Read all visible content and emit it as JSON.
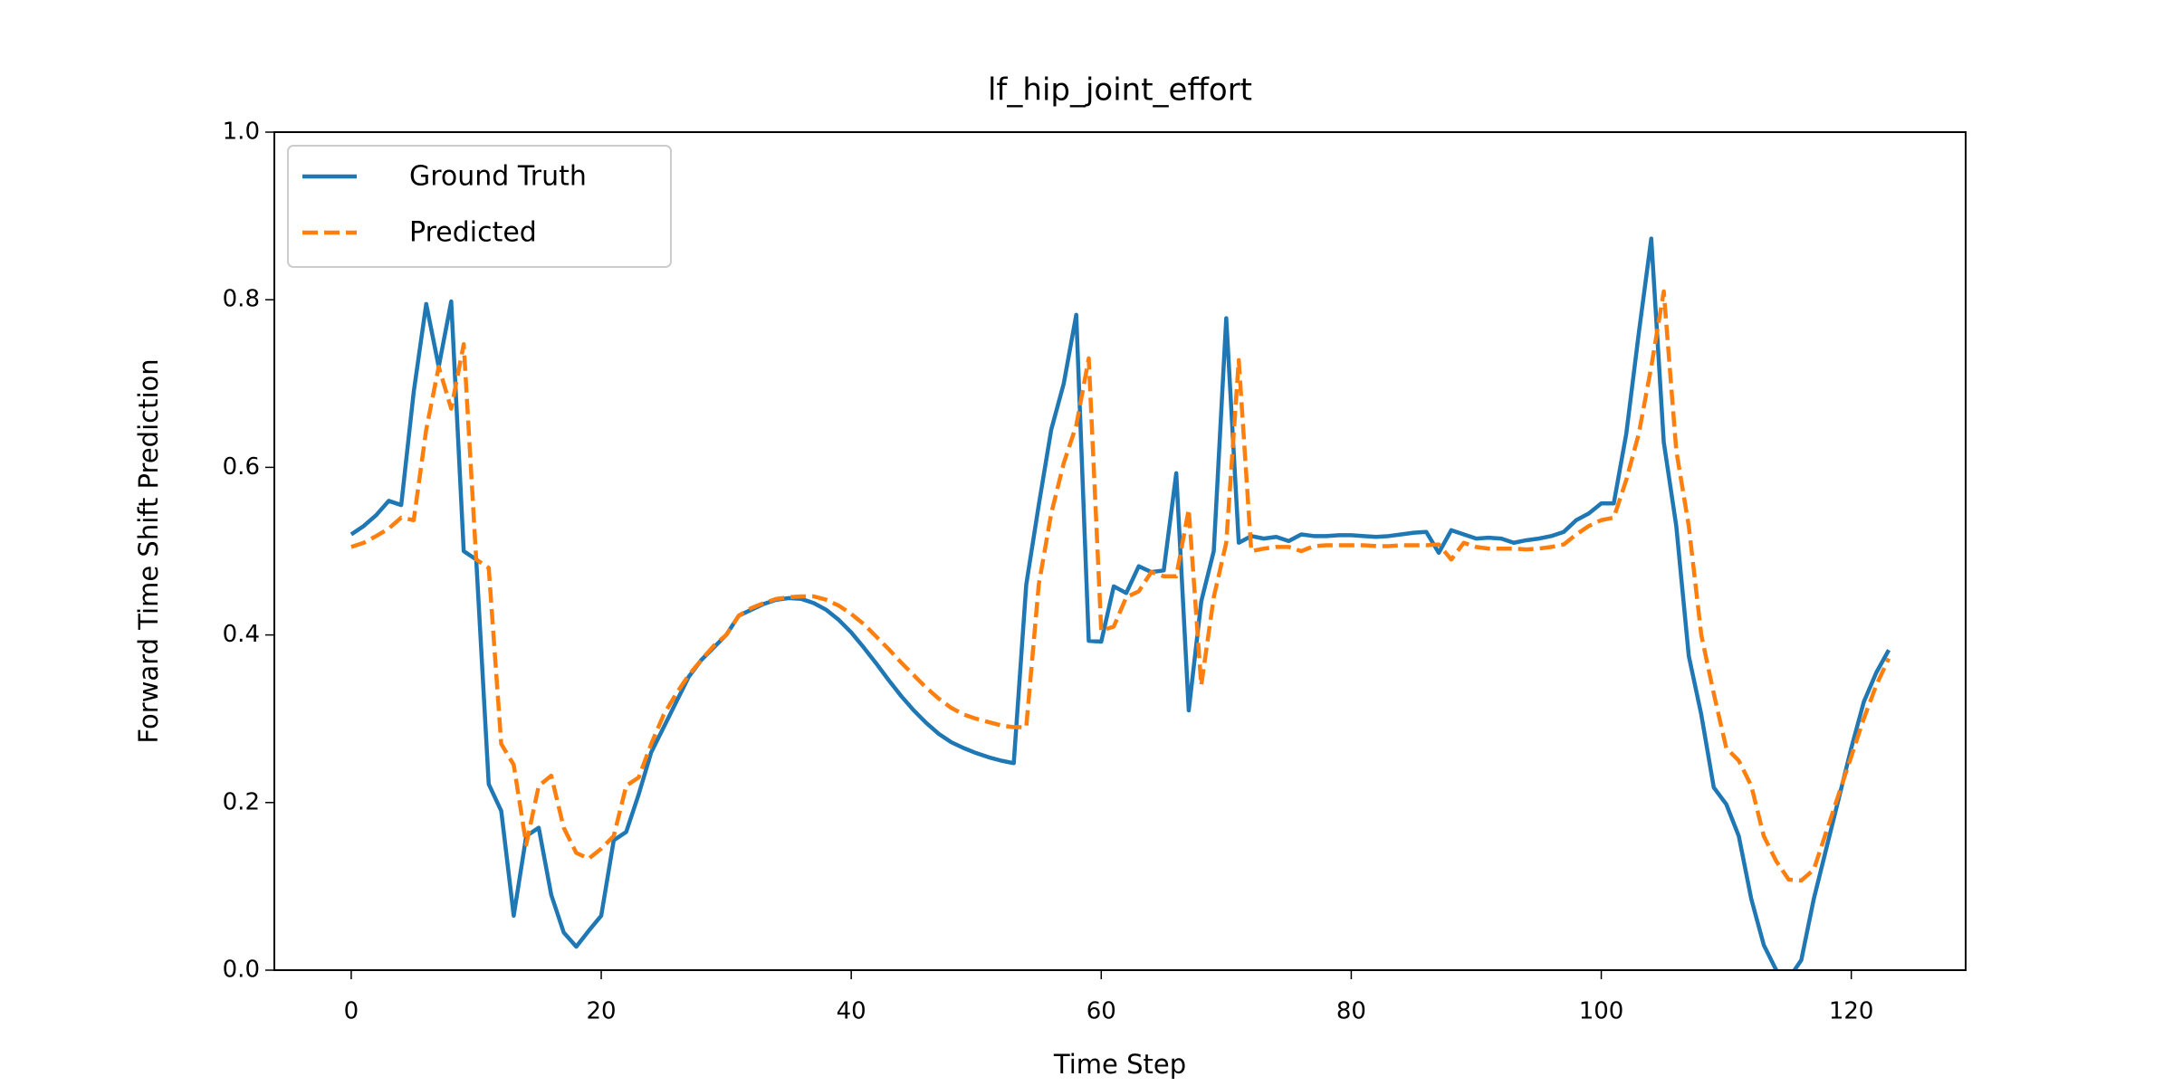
{
  "chart_data": {
    "type": "line",
    "title": "lf_hip_joint_effort",
    "xlabel": "Time Step",
    "ylabel": "Forward Time Shift Prediction",
    "x": [
      0,
      1,
      2,
      3,
      4,
      5,
      6,
      7,
      8,
      9,
      10,
      11,
      12,
      13,
      14,
      15,
      16,
      17,
      18,
      19,
      20,
      21,
      22,
      23,
      24,
      25,
      26,
      27,
      28,
      29,
      30,
      31,
      32,
      33,
      34,
      35,
      36,
      37,
      38,
      39,
      40,
      41,
      42,
      43,
      44,
      45,
      46,
      47,
      48,
      49,
      50,
      51,
      52,
      53,
      54,
      55,
      56,
      57,
      58,
      59,
      60,
      61,
      62,
      63,
      64,
      65,
      66,
      67,
      68,
      69,
      70,
      71,
      72,
      73,
      74,
      75,
      76,
      77,
      78,
      79,
      80,
      81,
      82,
      83,
      84,
      85,
      86,
      87,
      88,
      89,
      90,
      91,
      92,
      93,
      94,
      95,
      96,
      97,
      98,
      99,
      100,
      101,
      102,
      103,
      104,
      105,
      106,
      107,
      108,
      109,
      110,
      111,
      112,
      113,
      114,
      115,
      116,
      117,
      118,
      119,
      120,
      121,
      122,
      123
    ],
    "series": [
      {
        "name": "Ground Truth",
        "color": "#1f77b4",
        "linestyle": "solid",
        "values": [
          0.52,
          0.53,
          0.543,
          0.56,
          0.555,
          0.69,
          0.795,
          0.72,
          0.798,
          0.5,
          0.49,
          0.222,
          0.19,
          0.065,
          0.16,
          0.17,
          0.09,
          0.045,
          0.028,
          0.047,
          0.065,
          0.155,
          0.165,
          0.21,
          0.26,
          0.29,
          0.32,
          0.35,
          0.37,
          0.385,
          0.4,
          0.423,
          0.43,
          0.437,
          0.442,
          0.444,
          0.443,
          0.438,
          0.43,
          0.418,
          0.403,
          0.385,
          0.366,
          0.346,
          0.327,
          0.31,
          0.295,
          0.282,
          0.272,
          0.265,
          0.259,
          0.254,
          0.25,
          0.247,
          0.46,
          0.555,
          0.645,
          0.7,
          0.782,
          0.393,
          0.392,
          0.458,
          0.45,
          0.482,
          0.475,
          0.477,
          0.593,
          0.31,
          0.44,
          0.5,
          0.778,
          0.51,
          0.518,
          0.515,
          0.517,
          0.512,
          0.52,
          0.518,
          0.518,
          0.519,
          0.519,
          0.518,
          0.517,
          0.518,
          0.52,
          0.522,
          0.523,
          0.498,
          0.525,
          0.52,
          0.515,
          0.516,
          0.515,
          0.51,
          0.513,
          0.515,
          0.518,
          0.523,
          0.537,
          0.545,
          0.557,
          0.557,
          0.64,
          0.76,
          0.873,
          0.63,
          0.53,
          0.375,
          0.305,
          0.218,
          0.198,
          0.16,
          0.085,
          0.03,
          0.0,
          -0.01,
          0.012,
          0.085,
          0.145,
          0.205,
          0.265,
          0.32,
          0.355,
          0.382
        ]
      },
      {
        "name": "Predicted",
        "color": "#ff7f0e",
        "linestyle": "dashed",
        "values": [
          0.505,
          0.51,
          0.518,
          0.527,
          0.54,
          0.537,
          0.645,
          0.72,
          0.67,
          0.747,
          0.49,
          0.48,
          0.27,
          0.245,
          0.15,
          0.22,
          0.232,
          0.17,
          0.14,
          0.133,
          0.145,
          0.16,
          0.22,
          0.23,
          0.27,
          0.305,
          0.33,
          0.352,
          0.37,
          0.387,
          0.4,
          0.423,
          0.432,
          0.438,
          0.443,
          0.445,
          0.446,
          0.446,
          0.442,
          0.435,
          0.425,
          0.413,
          0.398,
          0.383,
          0.367,
          0.352,
          0.337,
          0.324,
          0.313,
          0.305,
          0.3,
          0.296,
          0.292,
          0.29,
          0.29,
          0.46,
          0.545,
          0.605,
          0.65,
          0.73,
          0.405,
          0.41,
          0.445,
          0.452,
          0.475,
          0.47,
          0.47,
          0.55,
          0.34,
          0.445,
          0.51,
          0.728,
          0.5,
          0.503,
          0.505,
          0.505,
          0.5,
          0.506,
          0.507,
          0.507,
          0.507,
          0.507,
          0.506,
          0.506,
          0.507,
          0.507,
          0.507,
          0.508,
          0.49,
          0.51,
          0.505,
          0.503,
          0.503,
          0.503,
          0.502,
          0.503,
          0.505,
          0.508,
          0.52,
          0.53,
          0.537,
          0.54,
          0.585,
          0.64,
          0.72,
          0.81,
          0.62,
          0.53,
          0.4,
          0.33,
          0.265,
          0.25,
          0.22,
          0.16,
          0.13,
          0.108,
          0.107,
          0.12,
          0.165,
          0.21,
          0.255,
          0.3,
          0.34,
          0.372
        ]
      }
    ],
    "xlim": [
      -6.15,
      129.15
    ],
    "xticks": [
      0,
      20,
      40,
      60,
      80,
      100,
      120
    ],
    "ylim": [
      0,
      1
    ],
    "yticks": [
      {
        "value": 0,
        "label": "0.0"
      },
      0.2,
      0.4,
      0.6,
      0.8,
      {
        "value": 1,
        "label": "1.0"
      }
    ],
    "grid": false,
    "legend": "upper left"
  }
}
